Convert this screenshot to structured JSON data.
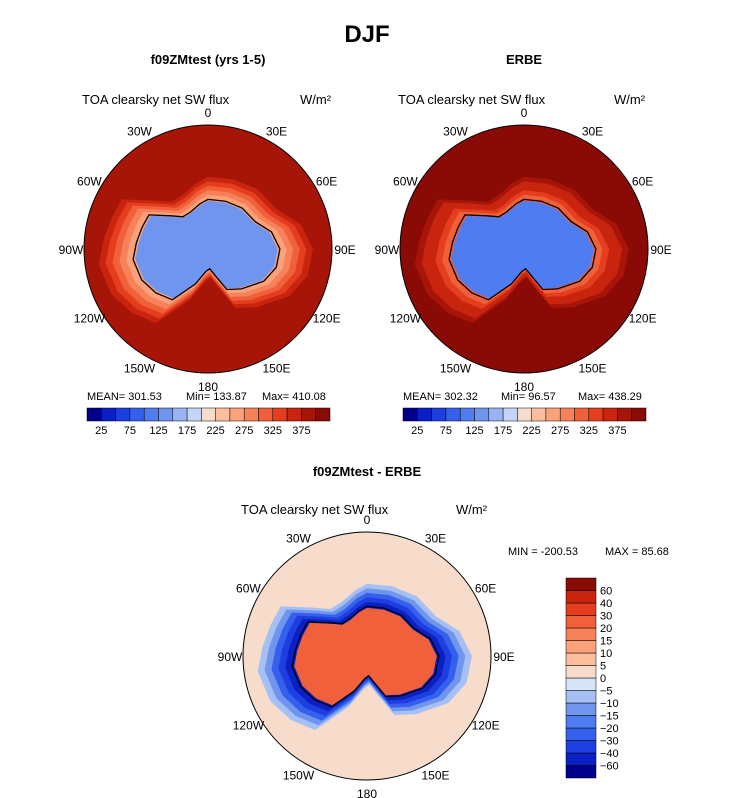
{
  "figure": {
    "title": "DJF"
  },
  "chart_data": [
    {
      "type": "heatmap",
      "subtitle": "f09ZMtest (yrs 1-5)",
      "variable": "TOA clearsky net SW flux",
      "units": "W/m²",
      "projection": "south polar stereographic",
      "lon_labels": [
        "0",
        "30E",
        "60E",
        "90E",
        "120E",
        "150E",
        "180",
        "150W",
        "120W",
        "90W",
        "60W",
        "30W"
      ],
      "stats": {
        "mean": "MEAN= 301.53",
        "min": "Min= 133.87",
        "max": "Max= 410.08"
      },
      "colorbar": {
        "tick_labels": [
          "25",
          "75",
          "125",
          "175",
          "225",
          "275",
          "325",
          "375"
        ],
        "levels": [
          0,
          25,
          50,
          75,
          100,
          125,
          150,
          175,
          200,
          225,
          250,
          275,
          300,
          325,
          350,
          375,
          400
        ],
        "colors": [
          "#00008c",
          "#0a1fc4",
          "#1e3fe0",
          "#3560ee",
          "#4f7cf0",
          "#7095ee",
          "#98b4f3",
          "#c4d6f7",
          "#f7dccc",
          "#fbbf9e",
          "#fba27a",
          "#f7825a",
          "#f0603a",
          "#e53e1e",
          "#c9240e",
          "#a71408",
          "#8a0b05"
        ]
      },
      "field": {
        "ocean_value": 390,
        "ice_edge_value": 250,
        "interior_value": 130
      }
    },
    {
      "type": "heatmap",
      "subtitle": "ERBE",
      "variable": "TOA clearsky net SW flux",
      "units": "W/m²",
      "projection": "south polar stereographic",
      "lon_labels": [
        "0",
        "30E",
        "60E",
        "90E",
        "120E",
        "150E",
        "180",
        "150W",
        "120W",
        "90W",
        "60W",
        "30W"
      ],
      "stats": {
        "mean": "MEAN= 302.32",
        "min": "Min= 96.57",
        "max": "Max= 438.29"
      },
      "colorbar": {
        "tick_labels": [
          "25",
          "75",
          "125",
          "175",
          "225",
          "275",
          "325",
          "375"
        ],
        "levels": [
          0,
          25,
          50,
          75,
          100,
          125,
          150,
          175,
          200,
          225,
          250,
          275,
          300,
          325,
          350,
          375,
          400
        ],
        "colors": [
          "#00008c",
          "#0a1fc4",
          "#1e3fe0",
          "#3560ee",
          "#4f7cf0",
          "#7095ee",
          "#98b4f3",
          "#c4d6f7",
          "#f7dccc",
          "#fbbf9e",
          "#fba27a",
          "#f7825a",
          "#f0603a",
          "#e53e1e",
          "#c9240e",
          "#a71408",
          "#8a0b05"
        ]
      },
      "field": {
        "ocean_value": 400,
        "ice_edge_value": 300,
        "interior_value": 110
      }
    },
    {
      "type": "heatmap",
      "subtitle": "f09ZMtest - ERBE",
      "variable": "TOA clearsky net SW flux",
      "units": "W/m²",
      "projection": "south polar stereographic",
      "lon_labels": [
        "0",
        "30E",
        "60E",
        "90E",
        "120E",
        "150E",
        "180",
        "150W",
        "120W",
        "90W",
        "60W",
        "30W"
      ],
      "stats": {
        "min": "MIN = -200.53",
        "max": "MAX =  85.68"
      },
      "colorbar": {
        "tick_labels": [
          "60",
          "40",
          "30",
          "20",
          "15",
          "10",
          "5",
          "0",
          "-5",
          "-10",
          "-15",
          "-20",
          "-30",
          "-40",
          "-60"
        ],
        "levels": [
          -80,
          -60,
          -40,
          -30,
          -20,
          -15,
          -10,
          -5,
          0,
          5,
          10,
          15,
          20,
          30,
          40,
          60,
          80
        ],
        "colors": [
          "#00008c",
          "#0a1fc4",
          "#1e3fe0",
          "#3560ee",
          "#4f7cf0",
          "#7095ee",
          "#a6c0f4",
          "#d6e4f8",
          "#f7dccc",
          "#fbbf9e",
          "#fba27a",
          "#f7825a",
          "#f0603a",
          "#e53e1e",
          "#c9240e",
          "#8a0b05"
        ]
      },
      "field": {
        "ocean_value": 3,
        "ice_edge_value": -50,
        "interior_value": 25
      }
    }
  ]
}
